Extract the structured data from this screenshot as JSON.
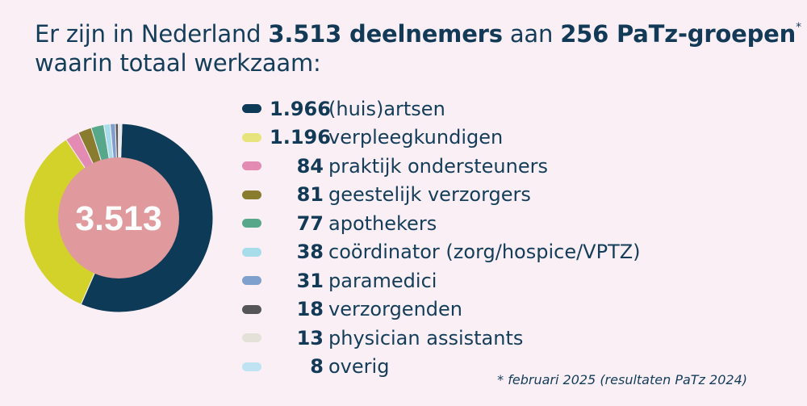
{
  "headline": {
    "part1": "Er zijn in Nederland ",
    "total_participants": "3.513 deelnemers",
    "part2": " aan ",
    "groups": "256 PaTz-groepen",
    "asterisk": "*",
    "line2": "waarin totaal werkzaam:"
  },
  "footnote": "* februari 2025 (resultaten PaTz 2024)",
  "chart_data": {
    "type": "pie",
    "center_label": "3.513",
    "total": 3513,
    "colors": {
      "center": "#e0999d",
      "center_text": "#ffffff"
    },
    "slices": [
      {
        "value": 1966,
        "value_label": "1.966",
        "label": "(huis)artsen",
        "color": "#0d3a57"
      },
      {
        "value": 1196,
        "value_label": "1.196",
        "label": "verpleegkundigen",
        "color": "#d3d22b",
        "swatch": "#e6e47a"
      },
      {
        "value": 84,
        "value_label": "84",
        "label": "praktijk ondersteuners",
        "color": "#e48bb4"
      },
      {
        "value": 81,
        "value_label": "81",
        "label": "geestelijk verzorgers",
        "color": "#8a7c2e"
      },
      {
        "value": 77,
        "value_label": "77",
        "label": "apothekers",
        "color": "#57a88a"
      },
      {
        "value": 38,
        "value_label": "38",
        "label": "coördinator (zorg/hospice/VPTZ)",
        "color": "#a7dceb"
      },
      {
        "value": 31,
        "value_label": "31",
        "label": "paramedici",
        "color": "#7f9fcc"
      },
      {
        "value": 18,
        "value_label": "18",
        "label": "verzorgenden",
        "color": "#555558"
      },
      {
        "value": 13,
        "value_label": "13",
        "label": "physician assistants",
        "color": "#e4e2d8"
      },
      {
        "value": 8,
        "value_label": "8",
        "label": "overig",
        "color": "#bfe3f2"
      }
    ]
  }
}
